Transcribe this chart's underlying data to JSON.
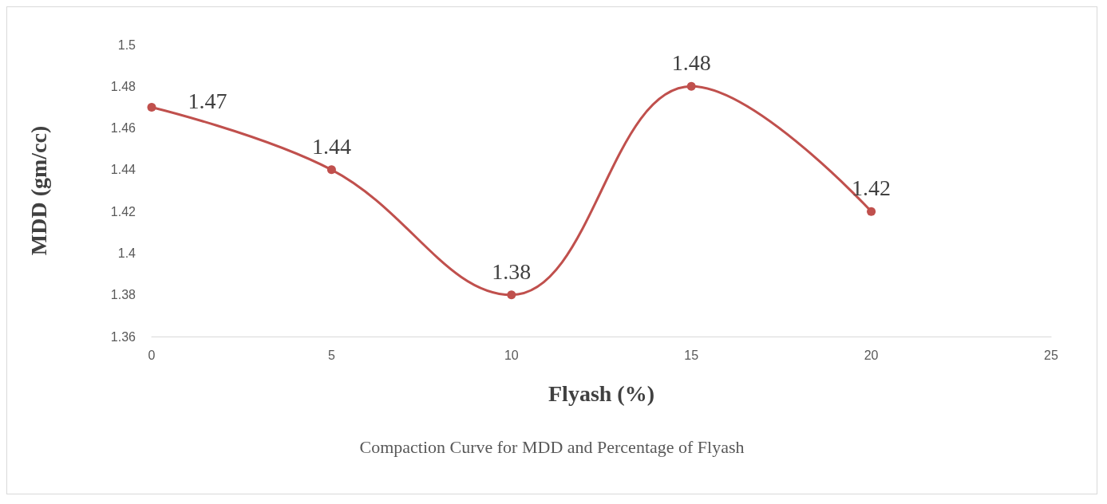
{
  "chart_data": {
    "type": "line",
    "xlabel": "Flyash (%)",
    "ylabel": "MDD (gm/cc)",
    "x": [
      0,
      5,
      10,
      15,
      20
    ],
    "series": [
      {
        "color": "#c0504d",
        "values": [
          1.47,
          1.44,
          1.38,
          1.48,
          1.42
        ]
      }
    ],
    "xlim": [
      0,
      25
    ],
    "xticks": [
      0,
      5,
      10,
      15,
      20,
      25
    ],
    "ylim": [
      1.36,
      1.5
    ],
    "yticks": [
      1.36,
      1.38,
      1.4,
      1.42,
      1.44,
      1.46,
      1.48,
      1.5
    ],
    "grid": false,
    "marker": "circle",
    "line_style": "solid",
    "data_labels": true,
    "annotations": [
      "Compaction Curve for MDD and Percentage of Flyash"
    ]
  }
}
